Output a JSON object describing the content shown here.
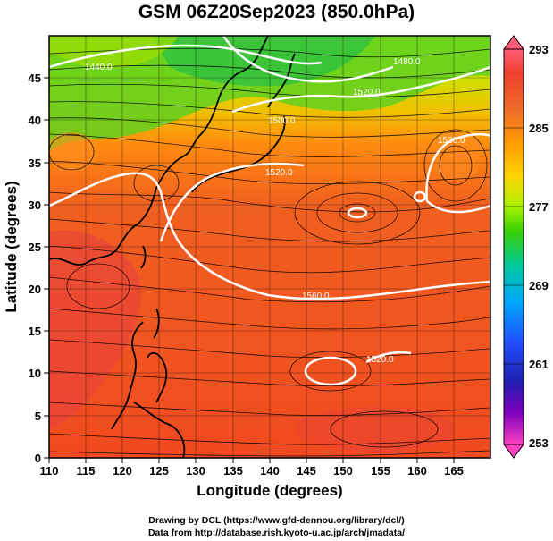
{
  "title": "GSM 06Z20Sep2023 (850.0hPa)",
  "x_axis": {
    "label": "Longitude (degrees)",
    "ticks": [
      "110",
      "115",
      "120",
      "125",
      "130",
      "135",
      "140",
      "145",
      "150",
      "155",
      "160",
      "165"
    ]
  },
  "y_axis": {
    "label": "Latitude  (degrees)",
    "ticks": [
      "0",
      "5",
      "10",
      "15",
      "20",
      "25",
      "30",
      "35",
      "40",
      "45"
    ]
  },
  "colorbar": {
    "ticks": [
      "293",
      "285",
      "277",
      "269",
      "261",
      "253"
    ],
    "colors": [
      "#ff5a78",
      "#f07028",
      "#ff9d00",
      "#ffd400",
      "#c8ff00",
      "#38d000",
      "#00c8a0",
      "#00a8ff",
      "#2050ff",
      "#2020b0",
      "#8000c0",
      "#ff40c0"
    ]
  },
  "contour_labels": [
    "1560.0",
    "1520.0",
    "1520.0",
    "1520.0",
    "1520.0",
    "1500.0",
    "1480.0",
    "1440.0"
  ],
  "credits": {
    "line1": "Drawing by DCL (https://www.gfd-dennou.org/library/dcl/)",
    "line2": "Data from http://database.rish.kyoto-u.ac.jp/arch/jmadata/"
  },
  "map": {
    "lon_range": [
      110,
      170
    ],
    "lat_range": [
      0,
      50
    ],
    "region": "Western North Pacific / East Asia"
  }
}
